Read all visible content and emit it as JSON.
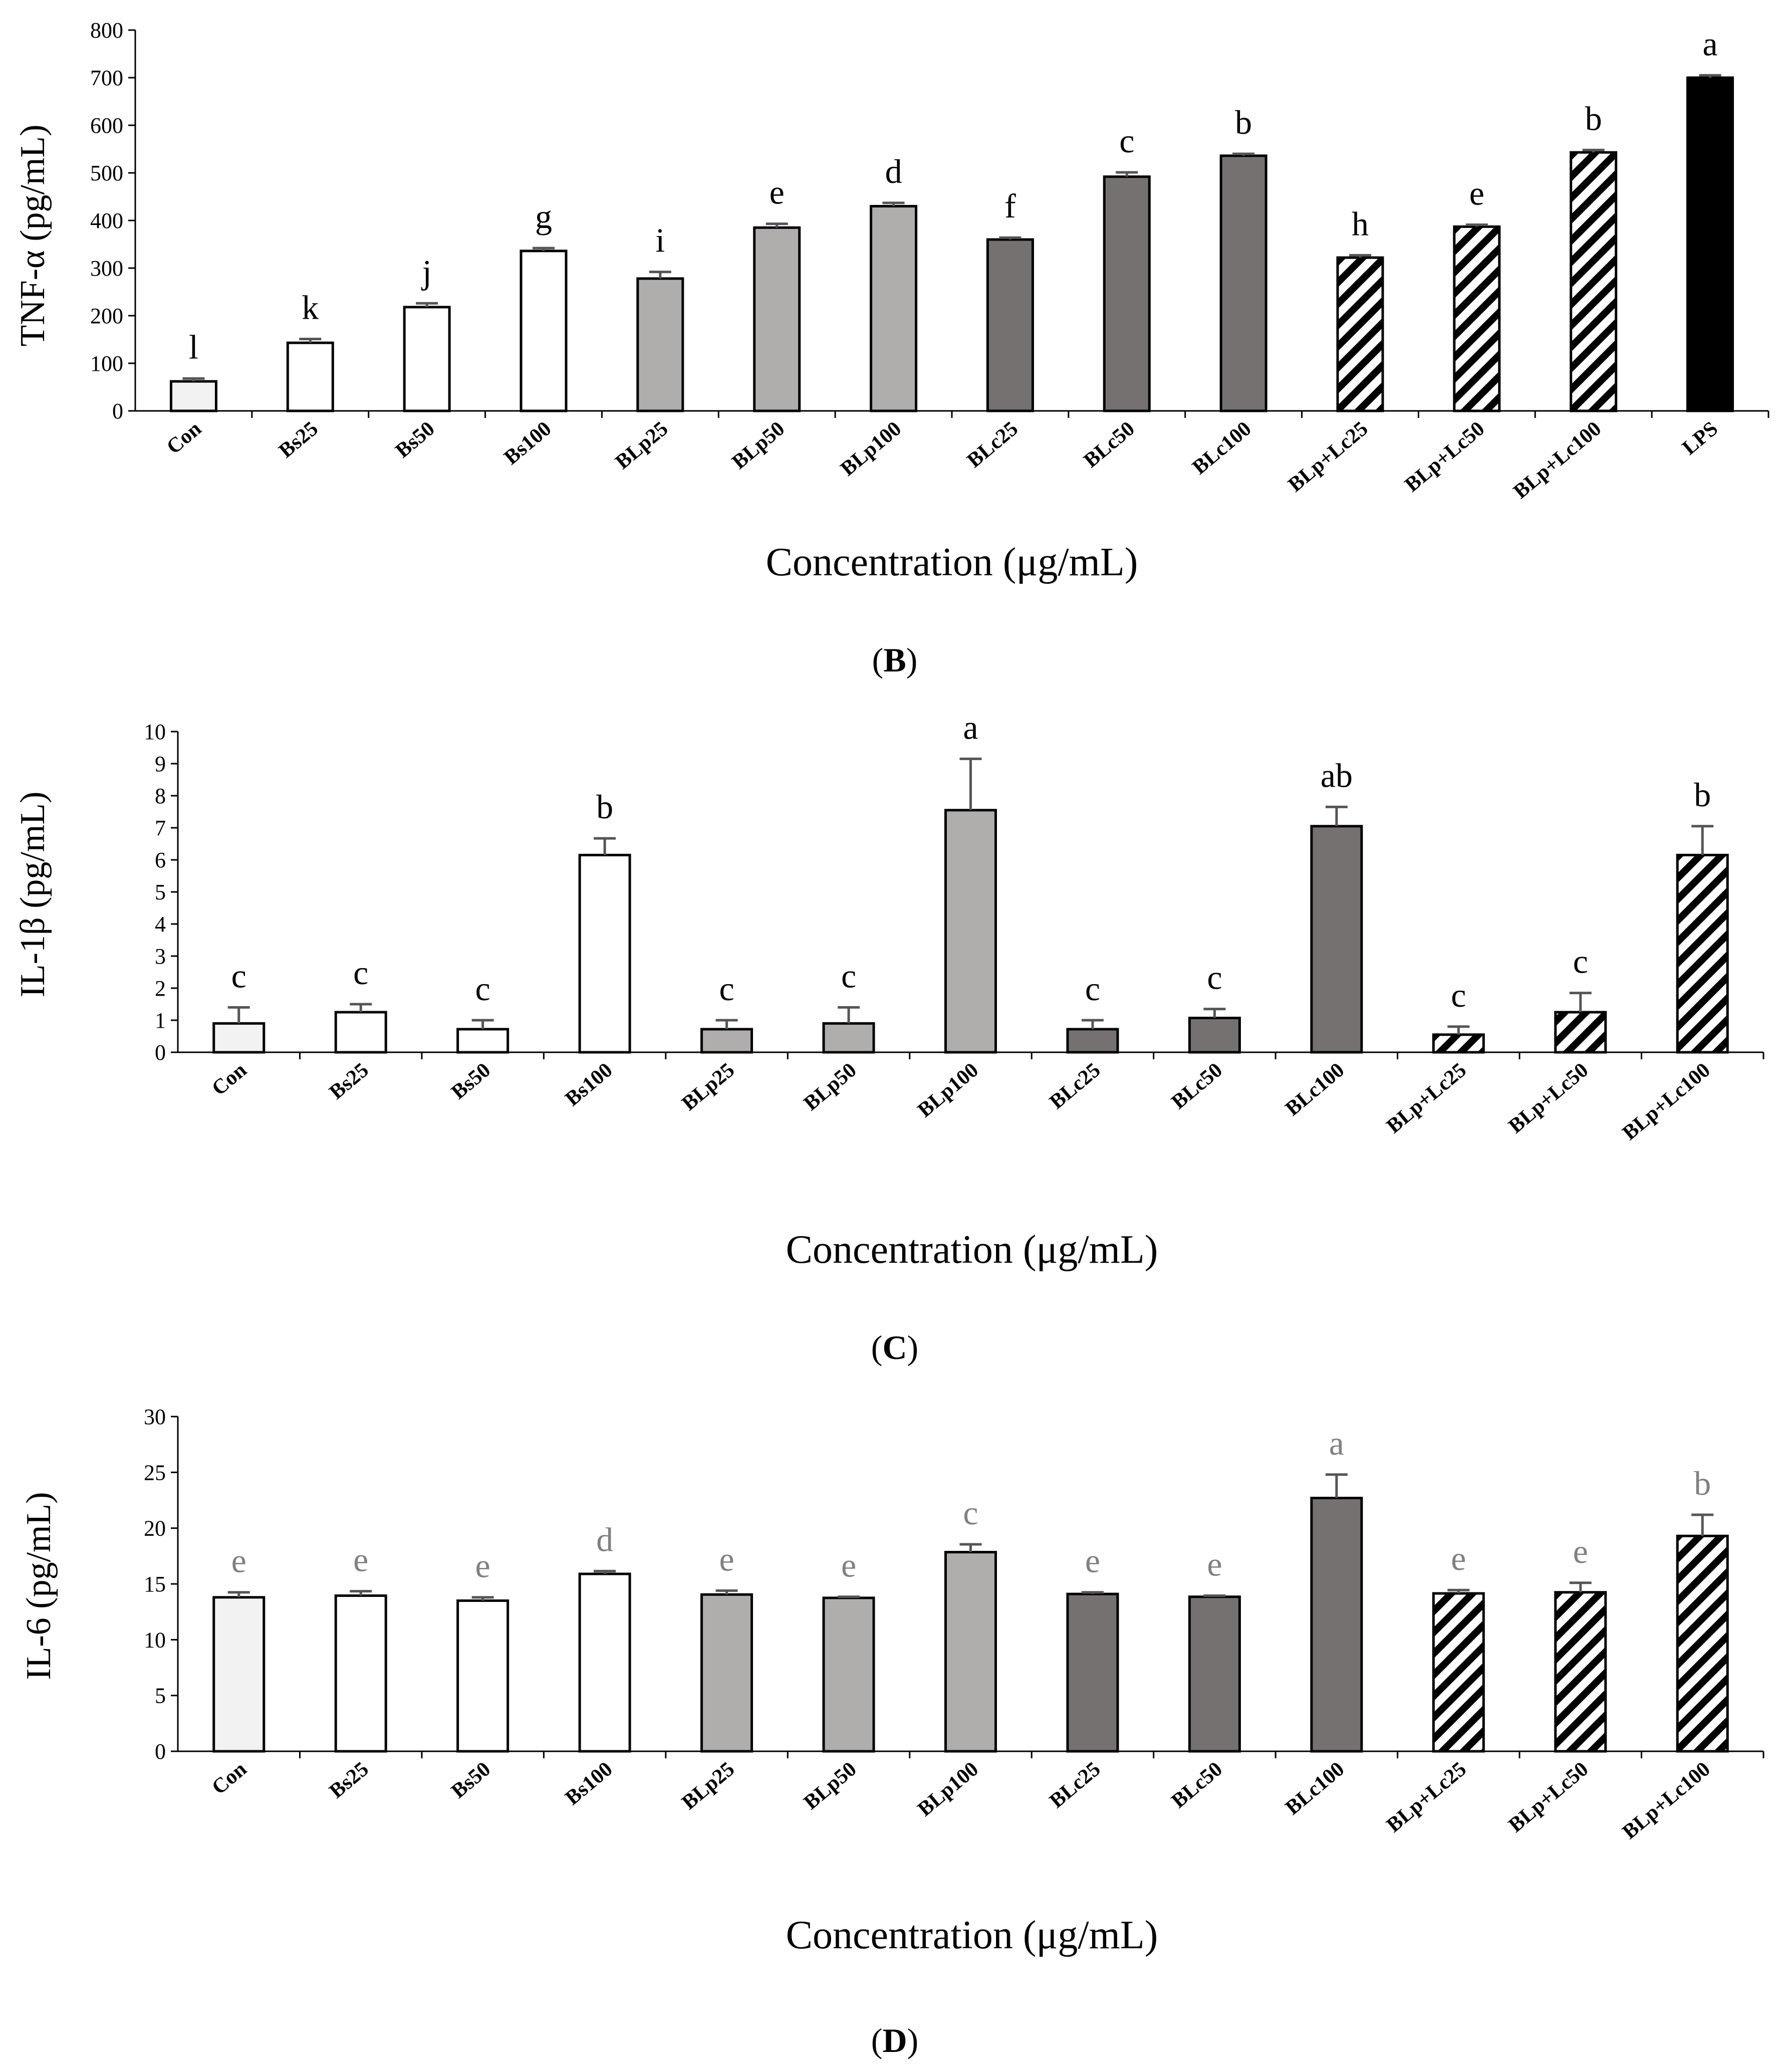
{
  "colors": {
    "control": "#f2f2f2",
    "Bs": "#ffffff",
    "BLp": "#b0adad",
    "BLc": "#767171",
    "BLp+Lc": "hatch",
    "LPS": "#000000",
    "letter_default": "#000000",
    "letter_gray": "#808080"
  },
  "chart_data": [
    {
      "type": "bar",
      "panel_label": "",
      "ylabel": "TNF-α (pg/mL)",
      "xlabel": "Concentration (μg/mL)",
      "ylim": [
        0,
        800
      ],
      "yticks": [
        0,
        100,
        200,
        300,
        400,
        500,
        600,
        700,
        800
      ],
      "categories": [
        "Con",
        "Bs25",
        "Bs50",
        "Bs100",
        "BLp25",
        "BLp50",
        "BLp100",
        "BLc25",
        "BLc50",
        "BLc100",
        "BLp+Lc25",
        "BLp+Lc50",
        "BLp+Lc100",
        "LPS"
      ],
      "values": [
        62,
        143,
        218,
        336,
        278,
        385,
        430,
        360,
        492,
        536,
        322,
        387,
        543,
        700
      ],
      "errors": [
        6,
        8,
        8,
        6,
        14,
        8,
        7,
        4,
        9,
        4,
        5,
        4,
        5,
        5
      ],
      "letters": [
        "l",
        "k",
        "j",
        "g",
        "i",
        "e",
        "d",
        "f",
        "c",
        "b",
        "h",
        "e",
        "b",
        "a"
      ],
      "groups": [
        "control",
        "Bs",
        "Bs",
        "Bs",
        "BLp",
        "BLp",
        "BLp",
        "BLc",
        "BLc",
        "BLc",
        "BLp+Lc",
        "BLp+Lc",
        "BLp+Lc",
        "LPS"
      ],
      "letter_color": "letter_default",
      "grid": false
    },
    {
      "type": "bar",
      "panel_label": "B",
      "ylabel": "IL-1β (pg/mL)",
      "xlabel": "Concentration (μg/mL)",
      "ylim": [
        0,
        10
      ],
      "yticks": [
        0,
        1,
        2,
        3,
        4,
        5,
        6,
        7,
        8,
        9,
        10
      ],
      "categories": [
        "Con",
        "Bs25",
        "Bs50",
        "Bs100",
        "BLp25",
        "BLp50",
        "BLp100",
        "BLc25",
        "BLc50",
        "BLc100",
        "BLp+Lc25",
        "BLp+Lc50",
        "BLp+Lc100"
      ],
      "values": [
        0.9,
        1.25,
        0.72,
        6.15,
        0.72,
        0.9,
        7.55,
        0.72,
        1.07,
        7.05,
        0.55,
        1.25,
        6.15
      ],
      "errors": [
        0.5,
        0.25,
        0.28,
        0.52,
        0.28,
        0.5,
        1.6,
        0.28,
        0.28,
        0.6,
        0.25,
        0.6,
        0.9
      ],
      "letters": [
        "c",
        "c",
        "c",
        "b",
        "c",
        "c",
        "a",
        "c",
        "c",
        "ab",
        "c",
        "c",
        "b"
      ],
      "groups": [
        "control",
        "Bs",
        "Bs",
        "Bs",
        "BLp",
        "BLp",
        "BLp",
        "BLc",
        "BLc",
        "BLc",
        "BLp+Lc",
        "BLp+Lc",
        "BLp+Lc"
      ],
      "letter_color": "letter_default",
      "grid": false
    },
    {
      "type": "bar",
      "panel_label": "C",
      "ylabel": "IL-6 (pg/mL)",
      "xlabel": "Concentration (μg/mL)",
      "ylim": [
        0,
        30
      ],
      "yticks": [
        0,
        5,
        10,
        15,
        20,
        25,
        30
      ],
      "categories": [
        "Con",
        "Bs25",
        "Bs50",
        "Bs100",
        "BLp25",
        "BLp50",
        "BLp100",
        "BLc25",
        "BLc50",
        "BLc100",
        "BLp+Lc25",
        "BLp+Lc50",
        "BLp+Lc100"
      ],
      "values": [
        13.8,
        13.95,
        13.5,
        15.9,
        14.05,
        13.75,
        17.85,
        14.1,
        13.85,
        22.7,
        14.15,
        14.25,
        19.3
      ],
      "errors": [
        0.45,
        0.4,
        0.3,
        0.25,
        0.35,
        0.1,
        0.7,
        0.15,
        0.1,
        2.1,
        0.3,
        0.85,
        1.9
      ],
      "letters": [
        "e",
        "e",
        "e",
        "d",
        "e",
        "e",
        "c",
        "e",
        "e",
        "a",
        "e",
        "e",
        "b"
      ],
      "groups": [
        "control",
        "Bs",
        "Bs",
        "Bs",
        "BLp",
        "BLp",
        "BLp",
        "BLc",
        "BLc",
        "BLc",
        "BLp+Lc",
        "BLp+Lc",
        "BLp+Lc"
      ],
      "letter_color": "letter_gray",
      "grid": false
    }
  ],
  "bottom_panel_label": "D"
}
